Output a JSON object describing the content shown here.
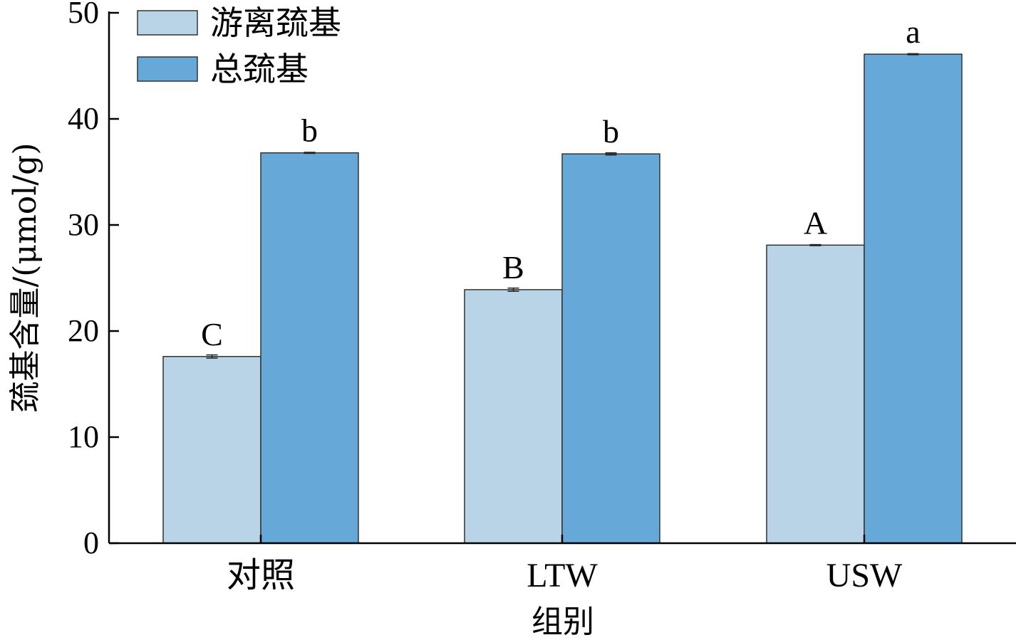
{
  "chart_data": {
    "type": "bar",
    "categories": [
      "对照",
      "LTW",
      "USW"
    ],
    "series": [
      {
        "name": "游离巯基",
        "color": "#b8d4e6",
        "values": [
          17.6,
          23.9,
          28.1
        ],
        "errors": [
          0.15,
          0.15,
          0.05
        ],
        "labels": [
          "C",
          "B",
          "A"
        ]
      },
      {
        "name": "总巯基",
        "color": "#66a9d8",
        "values": [
          36.8,
          36.7,
          46.1
        ],
        "errors": [
          0.05,
          0.1,
          0.05
        ],
        "labels": [
          "b",
          "b",
          "a"
        ]
      }
    ],
    "xlabel": "组别",
    "ylabel": "巯基含量/(μmol/g)",
    "ylim": [
      0,
      50
    ],
    "yticks": [
      0,
      10,
      20,
      30,
      40,
      50
    ],
    "legend_position": "top-left",
    "grid": false
  }
}
